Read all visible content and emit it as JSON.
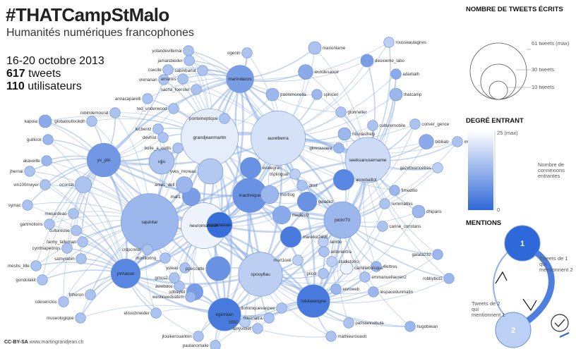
{
  "header": {
    "title": "#THATCampStMalo",
    "subtitle": "Humanités numériques francophones",
    "dates": "16-20 octobre 2013",
    "tweets_count": "617",
    "tweets_word": "tweets",
    "users_count": "110",
    "users_word": "utilisateurs"
  },
  "credit": {
    "license": "CC-BY-SA",
    "url": "www.martingrandjean.ch"
  },
  "legend": {
    "size_title": "NOMBRE DE TWEETS ÉCRITS",
    "size_labels": [
      "61 tweets (max)",
      "30 tweets",
      "10 tweets"
    ],
    "indegree_title": "DEGRÉ ENTRANT",
    "indegree_max": "25 (max)",
    "indegree_min": "0",
    "indegree_caption": "Nombre de connexions entrantes",
    "mentions_title": "MENTIONS",
    "mention_a": "1",
    "mention_b": "2",
    "mention_caption_1": "Tweets de 1 qui mentionnent 2",
    "mention_caption_2": "Tweets de 2 qui mentionnent 1",
    "clock_icon": "clock-icon"
  },
  "graph": {
    "colors": {
      "edge": "#8fb0e8",
      "dark": "#2f68d8",
      "light": "#ffffff",
      "stroke": "#6b8fd6"
    },
    "nodes": [
      {
        "id": "grandjeanmartin",
        "label": "grandjeanmartin",
        "tweets": 61,
        "indeg": 3,
        "inner": true
      },
      {
        "id": "aurelberra",
        "label": "aurelberra",
        "tweets": 55,
        "indeg": 5,
        "inner": true
      },
      {
        "id": "squintar",
        "label": "squintar",
        "tweets": 61,
        "indeg": 12,
        "inner": true
      },
      {
        "id": "neuromancien",
        "label": "neuromancien",
        "tweets": 39,
        "indeg": 2,
        "inner": true
      },
      {
        "id": "spouyllau",
        "label": "spouyllau",
        "tweets": 36,
        "indeg": 8,
        "inner": true
      },
      {
        "id": "seeksanusername",
        "label": "seeksanusername",
        "tweets": 38,
        "indeg": 6,
        "inner": true
      },
      {
        "id": "piotrr70",
        "label": "piotrr70",
        "tweets": 25,
        "indeg": 12,
        "inner": true
      },
      {
        "id": "inactinique",
        "label": "inactinique",
        "tweets": 22,
        "indeg": 18,
        "inner": true
      },
      {
        "id": "yv_plo",
        "label": "yv_plo",
        "tweets": 21,
        "indeg": 17,
        "inner": true
      },
      {
        "id": "ndelavergne",
        "label": "ndelavergne",
        "tweets": 20,
        "indeg": 22,
        "inner": true
      },
      {
        "id": "egiordan",
        "label": "egiordan",
        "tweets": 20,
        "indeg": 22,
        "inner": true
      },
      {
        "id": "jomasse",
        "label": "jomasse",
        "tweets": 16,
        "indeg": 20,
        "inner": true
      },
      {
        "id": "marindacos",
        "label": "marindacos",
        "tweets": 14,
        "indeg": 16,
        "inner": true
      },
      {
        "id": "ujju",
        "label": "ujju",
        "tweets": 12,
        "indeg": 10,
        "inner": true
      },
      {
        "id": "kardelabaie",
        "label": "kardelabaie",
        "tweets": 12,
        "indeg": 24,
        "inner": true
      },
      {
        "id": "mareike2405",
        "label": "mareike2405",
        "tweets": 8,
        "indeg": 22,
        "inner": false
      },
      {
        "id": "yves_moreau",
        "label": "yves_moreau",
        "tweets": 12,
        "indeg": 9,
        "inner": false
      },
      {
        "id": "ppeccatte",
        "label": "ppeccatte",
        "tweets": 11,
        "indeg": 18,
        "inner": false
      },
      {
        "id": "evalegrai",
        "label": "evalegrai",
        "tweets": 8,
        "indeg": 18,
        "inner": false
      },
      {
        "id": "annebaillot",
        "label": "annebaillot",
        "tweets": 8,
        "indeg": 20,
        "inner": false
      },
      {
        "id": "mortlog",
        "label": "mortlog",
        "tweets": 6,
        "indeg": 12,
        "inner": false
      },
      {
        "id": "medieviz",
        "label": "medieviz",
        "tweets": 6,
        "indeg": 14,
        "inner": false
      },
      {
        "id": "gwadez",
        "label": "gwadez",
        "tweets": 7,
        "indeg": 18,
        "inner": false
      },
      {
        "id": "ames_dell",
        "label": "ames_dell",
        "tweets": 5,
        "indeg": 12,
        "inner": false
      },
      {
        "id": "mall1",
        "label": "mall1",
        "tweets": 6,
        "indeg": 16,
        "inner": false
      },
      {
        "id": "ocontat",
        "label": "ocontat",
        "tweets": 5,
        "indeg": 10,
        "inner": false
      },
      {
        "id": "cdbaylet",
        "label": "cdbaylet",
        "tweets": 5,
        "indeg": 16,
        "inner": false
      },
      {
        "id": "rousseaulagnes",
        "label": "rousseaulagnes",
        "tweets": 2,
        "indeg": 8,
        "inner": false
      },
      {
        "id": "marionlame",
        "label": "marionlame",
        "tweets": 3,
        "indeg": 10,
        "inner": false
      },
      {
        "id": "deuxieme_labo",
        "label": "deuxieme_labo",
        "tweets": 3,
        "indeg": 16,
        "inner": false
      },
      {
        "id": "adartialh",
        "label": "adartialh",
        "tweets": 2,
        "indeg": 14,
        "inner": false
      },
      {
        "id": "leuxdesavoir",
        "label": "leuxdesavoir",
        "tweets": 4,
        "indeg": 14,
        "inner": false
      },
      {
        "id": "paolomonella",
        "label": "paolomonella",
        "tweets": 3,
        "indeg": 12,
        "inner": false
      },
      {
        "id": "spiriciel",
        "label": "spiriciel",
        "tweets": 2,
        "indeg": 12,
        "inner": false
      },
      {
        "id": "thatcamp",
        "label": "thatcamp",
        "tweets": 3,
        "indeg": 12,
        "inner": false
      },
      {
        "id": "gtonneller",
        "label": "gtonneller",
        "tweets": 2,
        "indeg": 10,
        "inner": false
      },
      {
        "id": "culturemobile",
        "label": "culturemobile",
        "tweets": 2,
        "indeg": 10,
        "inner": false
      },
      {
        "id": "conver_gence",
        "label": "conver_gence",
        "tweets": 2,
        "indeg": 10,
        "inner": false
      },
      {
        "id": "nicolasthely",
        "label": "nicolasthely",
        "tweets": 3,
        "indeg": 12,
        "inner": false
      },
      {
        "id": "bibliiab",
        "label": "bibliiab",
        "tweets": 4,
        "indeg": 14,
        "inner": false
      },
      {
        "id": "invisu",
        "label": "invisu",
        "tweets": 2,
        "indeg": 10,
        "inner": false
      },
      {
        "id": "glmrouviere",
        "label": "glmrouviere",
        "tweets": 2,
        "indeg": 12,
        "inner": false
      },
      {
        "id": "gazetteancetres",
        "label": "gazetteancetres",
        "tweets": 2,
        "indeg": 8,
        "inner": false
      },
      {
        "id": "fimeditio",
        "label": "fimeditio",
        "tweets": 2,
        "indeg": 12,
        "inner": false
      },
      {
        "id": "remimathis",
        "label": "remimathis",
        "tweets": 2,
        "indeg": 10,
        "inner": false
      },
      {
        "id": "dhiparis",
        "label": "dhiparis",
        "tweets": 3,
        "indeg": 12,
        "inner": false
      },
      {
        "id": "carine_constans",
        "label": "carine_constans",
        "tweets": 2,
        "indeg": 10,
        "inner": false
      },
      {
        "id": "triplingual",
        "label": "triplingual",
        "tweets": 2,
        "indeg": 8,
        "inner": false
      },
      {
        "id": "drmt",
        "label": "drmt",
        "tweets": 2,
        "indeg": 10,
        "inner": false
      },
      {
        "id": "lambo",
        "label": "lambo",
        "tweets": 2,
        "indeg": 8,
        "inner": false
      },
      {
        "id": "antoniertra",
        "label": "antoniertra",
        "tweets": 2,
        "indeg": 10,
        "inner": false
      },
      {
        "id": "mart1oeil",
        "label": "mart1oeil",
        "tweets": 2,
        "indeg": 8,
        "inner": false
      },
      {
        "id": "studistorici",
        "label": "studistorici",
        "tweets": 2,
        "indeg": 8,
        "inner": false
      },
      {
        "id": "camilleboisque",
        "label": "camilleboisque",
        "tweets": 3,
        "indeg": 2,
        "inner": false
      },
      {
        "id": "4lettres",
        "label": "4lettres",
        "tweets": 2,
        "indeg": 12,
        "inner": false
      },
      {
        "id": "emmanuellauren2",
        "label": "emmanuellauren2",
        "tweets": 2,
        "indeg": 10,
        "inner": false
      },
      {
        "id": "galata232",
        "label": "galata232",
        "tweets": 2,
        "indeg": 12,
        "inner": false
      },
      {
        "id": "robbybot2",
        "label": "robbybot2",
        "tweets": 2,
        "indeg": 12,
        "inner": false
      },
      {
        "id": "pilcol",
        "label": "pilcol",
        "tweets": 2,
        "indeg": 10,
        "inner": false
      },
      {
        "id": "enroweb",
        "label": "enroweb",
        "tweets": 2,
        "indeg": 12,
        "inner": false
      },
      {
        "id": "lespacedunmatin",
        "label": "lespacedunmatin",
        "tweets": 2,
        "indeg": 12,
        "inner": false
      },
      {
        "id": "dominiquevanpee",
        "label": "dominiquevanpee",
        "tweets": 2,
        "indeg": 10,
        "inner": false
      },
      {
        "id": "mesinatra",
        "label": "mesinatra",
        "tweets": 2,
        "indeg": 10,
        "inner": false
      },
      {
        "id": "bfl50",
        "label": "bfl50",
        "tweets": 2,
        "indeg": 8,
        "inner": false
      },
      {
        "id": "amyviolet",
        "label": "amyviolet",
        "tweets": 2,
        "indeg": 10,
        "inner": false
      },
      {
        "id": "parisiannebula",
        "label": "parisiannebula",
        "tweets": 2,
        "indeg": 10,
        "inner": false
      },
      {
        "id": "mathieurouault",
        "label": "mathieurouault",
        "tweets": 2,
        "indeg": 10,
        "inner": false
      },
      {
        "id": "hugobiwan",
        "label": "hugobiwan",
        "tweets": 2,
        "indeg": 12,
        "inner": false
      },
      {
        "id": "jlouikerouanton",
        "label": "jlouikerouanton",
        "tweets": 2,
        "indeg": 10,
        "inner": false
      },
      {
        "id": "paulanomalie",
        "label": "paulanomalie",
        "tweets": 2,
        "indeg": 10,
        "inner": false
      },
      {
        "id": "elisschneider",
        "label": "elisschneider",
        "tweets": 2,
        "indeg": 10,
        "inner": false
      },
      {
        "id": "westineedvatum",
        "label": "westineedvatum",
        "tweets": 2,
        "indeg": 12,
        "inner": false
      },
      {
        "id": "awebdoc",
        "label": "awebdoc",
        "tweets": 2,
        "indeg": 10,
        "inner": false
      },
      {
        "id": "gmcs2",
        "label": "gmcs2",
        "tweets": 2,
        "indeg": 10,
        "inner": false
      },
      {
        "id": "ysleas",
        "label": "ysleas",
        "tweets": 2,
        "indeg": 10,
        "inner": false
      },
      {
        "id": "monitoring_",
        "label": "monitoring_",
        "tweets": 2,
        "indeg": 10,
        "inner": false
      },
      {
        "id": "crdpcretei",
        "label": "crdpcretei",
        "tweets": 2,
        "indeg": 10,
        "inner": false
      },
      {
        "id": "frtheron",
        "label": "frtheron",
        "tweets": 2,
        "indeg": 10,
        "inner": false
      },
      {
        "id": "yolandevillemai",
        "label": "yolandevillemai",
        "tweets": 2,
        "indeg": 10,
        "inner": false
      },
      {
        "id": "ogenin",
        "label": "ogenin",
        "tweets": 2,
        "indeg": 10,
        "inner": false
      },
      {
        "id": "jamaisbieder",
        "label": "jamaisbieder",
        "tweets": 2,
        "indeg": 10,
        "inner": false
      },
      {
        "id": "csecile",
        "label": "csecile",
        "tweets": 2,
        "indeg": 10,
        "inner": false
      },
      {
        "id": "sabinbarlut",
        "label": "sabinbarlut",
        "tweets": 2,
        "indeg": 10,
        "inner": false
      },
      {
        "id": "vrenanan",
        "label": "vrenanan",
        "tweets": 2,
        "indeg": 10,
        "inner": false
      },
      {
        "id": "amarois",
        "label": "amarois",
        "tweets": 2,
        "indeg": 10,
        "inner": false
      },
      {
        "id": "sacha_foerster",
        "label": "sacha_foerster",
        "tweets": 2,
        "indeg": 10,
        "inner": false
      },
      {
        "id": "annacaparelli",
        "label": "annacaparelli",
        "tweets": 2,
        "indeg": 10,
        "inner": false
      },
      {
        "id": "ted_underwood",
        "label": "ted_underwood",
        "tweets": 2,
        "indeg": 10,
        "inner": false
      },
      {
        "id": "robindemourat",
        "label": "robindemourat",
        "tweets": 2,
        "indeg": 10,
        "inner": false
      },
      {
        "id": "globaloutlookdh",
        "label": "globaloutlookdh",
        "tweets": 2,
        "indeg": 10,
        "inner": false
      },
      {
        "id": "kapoia",
        "label": "kapoia",
        "tweets": 3,
        "indeg": 14,
        "inner": false
      },
      {
        "id": "guillock",
        "label": "guillock",
        "tweets": 2,
        "indeg": 12,
        "inner": false
      },
      {
        "id": "lucbentz",
        "label": "lucbentz",
        "tweets": 2,
        "indeg": 10,
        "inner": false
      },
      {
        "id": "devhist",
        "label": "devhist",
        "tweets": 2,
        "indeg": 10,
        "inner": false
      },
      {
        "id": "boite_a_outils",
        "label": "boite_a_outils",
        "tweets": 2,
        "indeg": 10,
        "inner": false
      },
      {
        "id": "ponteineptique",
        "label": "ponteineptique",
        "tweets": 2,
        "indeg": 10,
        "inner": false
      },
      {
        "id": "akaveille",
        "label": "akaveille",
        "tweets": 2,
        "indeg": 12,
        "inner": false
      },
      {
        "id": "jhernal",
        "label": "jhernal",
        "tweets": 2,
        "indeg": 10,
        "inner": false
      },
      {
        "id": "vin100meyer",
        "label": "vin100meyer",
        "tweets": 2,
        "indeg": 10,
        "inner": false
      },
      {
        "id": "symac",
        "label": "symac",
        "tweets": 2,
        "indeg": 10,
        "inner": false
      },
      {
        "id": "menardeau",
        "label": "menardeau",
        "tweets": 2,
        "indeg": 10,
        "inner": false
      },
      {
        "id": "gartmotions",
        "label": "gartmotions",
        "tweets": 2,
        "indeg": 10,
        "inner": false
      },
      {
        "id": "cultureuse",
        "label": "cultureuse",
        "tweets": 2,
        "indeg": 10,
        "inner": false
      },
      {
        "id": "fanny_lalleman",
        "label": "fanny_lalleman",
        "tweets": 2,
        "indeg": 10,
        "inner": false
      },
      {
        "id": "cynthiapedrojs",
        "label": "cynthiapedrojs",
        "tweets": 2,
        "indeg": 10,
        "inner": false
      },
      {
        "id": "samyrabih",
        "label": "samyrabih",
        "tweets": 2,
        "indeg": 10,
        "inner": false
      },
      {
        "id": "meshs_lille",
        "label": "meshs_lille",
        "tweets": 2,
        "indeg": 10,
        "inner": false
      },
      {
        "id": "gondolakit",
        "label": "gondolakit",
        "tweets": 2,
        "indeg": 10,
        "inner": false
      },
      {
        "id": "cdesenclos",
        "label": "cdesenclos",
        "tweets": 2,
        "indeg": 10,
        "inner": false
      },
      {
        "id": "museologique",
        "label": "museologique",
        "tweets": 2,
        "indeg": 10,
        "inner": false
      }
    ]
  }
}
